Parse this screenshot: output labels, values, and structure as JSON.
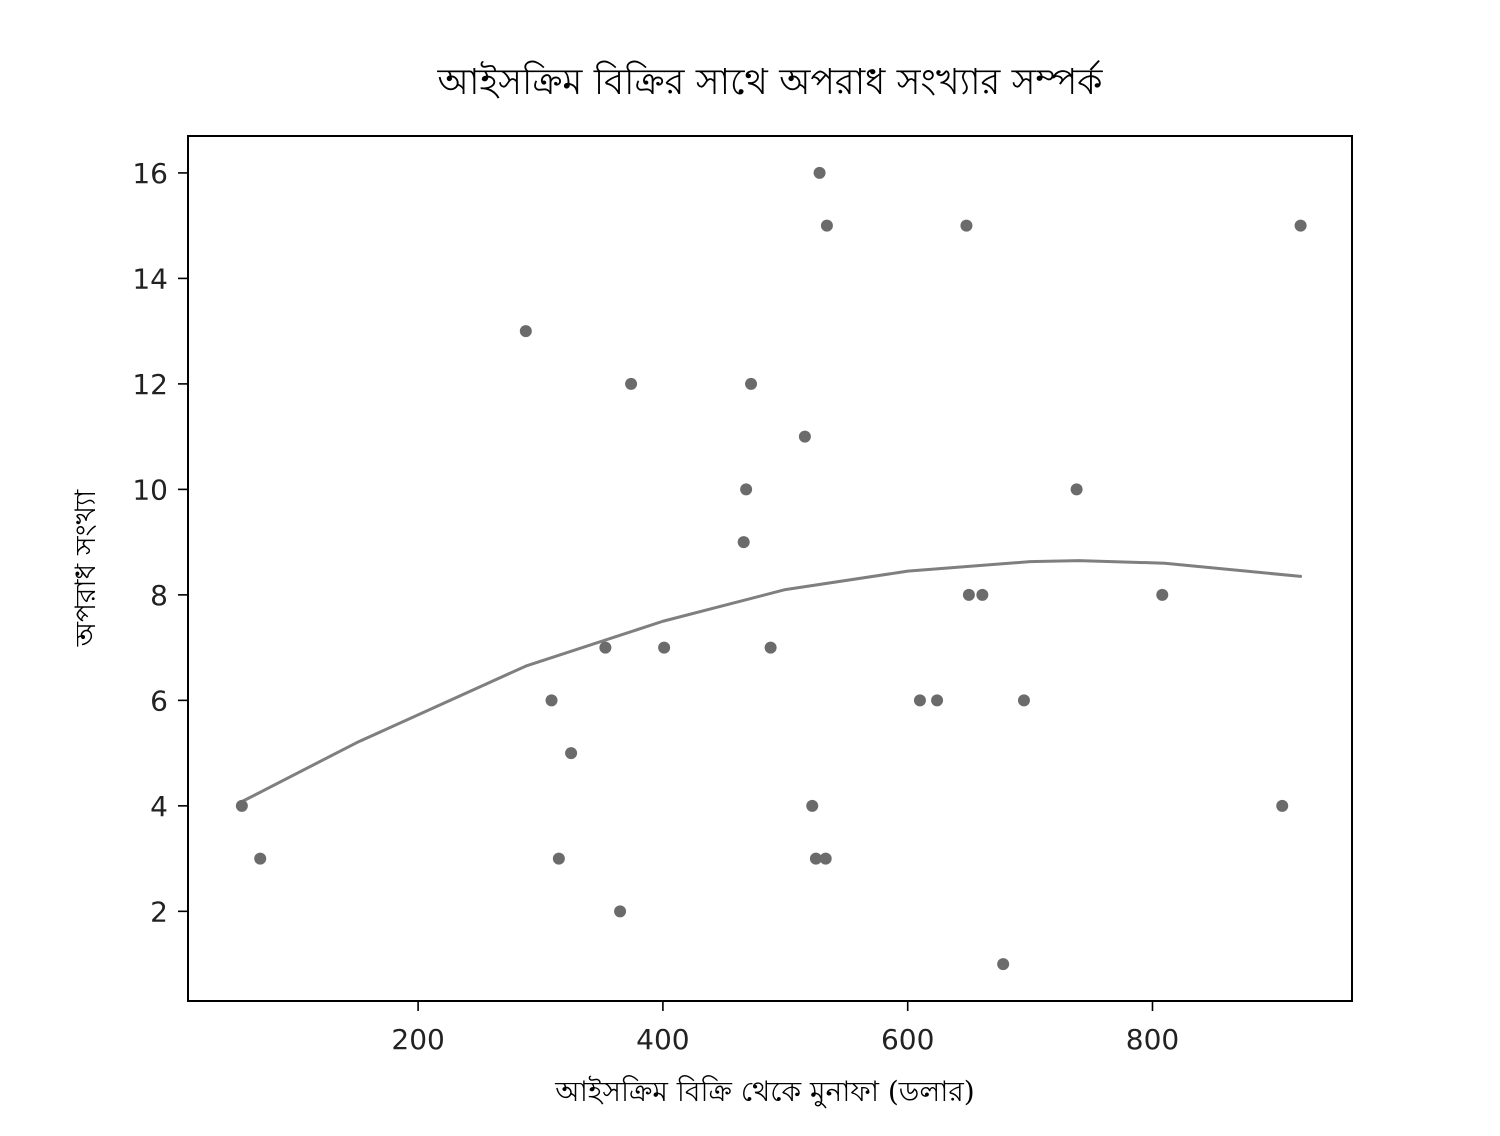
{
  "chart_data": {
    "type": "scatter",
    "title": "আইসক্রিম বিক্রির সাথে অপরাধ সংখ্যার সম্পর্ক",
    "xlabel": "আইসক্রিম বিক্রি থেকে মুনাফা (ডলার)",
    "ylabel": "অপরাধ সংখ্যা",
    "xlim": [
      12,
      963
    ],
    "ylim": [
      0.3,
      16.7
    ],
    "xticks": [
      200,
      400,
      600,
      800
    ],
    "yticks": [
      2,
      4,
      6,
      8,
      10,
      12,
      14,
      16
    ],
    "grid": false,
    "colors": {
      "points": "#6b6b6b",
      "trend": "#7f7f7f"
    },
    "series": [
      {
        "kind": "points",
        "x": [
          56,
          71,
          288,
          309,
          315,
          325,
          353,
          365,
          374,
          401,
          466,
          468,
          472,
          488,
          516,
          522,
          525,
          528,
          533,
          534,
          610,
          624,
          648,
          650,
          661,
          678,
          695,
          738,
          808,
          906,
          921
        ],
        "y": [
          4,
          3,
          13,
          6,
          3,
          5,
          7,
          2,
          12,
          7,
          9,
          10,
          12,
          7,
          11,
          4,
          3,
          16,
          3,
          15,
          6,
          6,
          15,
          8,
          8,
          1,
          6,
          10,
          8,
          4,
          15
        ]
      },
      {
        "kind": "trend",
        "x": [
          56,
          150,
          288,
          400,
          500,
          600,
          700,
          740,
          810,
          921
        ],
        "y": [
          4.08,
          5.2,
          6.65,
          7.5,
          8.1,
          8.45,
          8.63,
          8.65,
          8.6,
          8.35
        ]
      }
    ]
  }
}
